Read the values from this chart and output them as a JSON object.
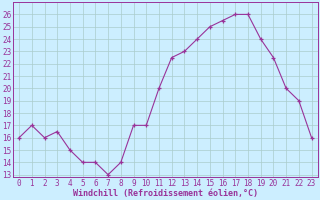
{
  "hours": [
    0,
    1,
    2,
    3,
    4,
    5,
    6,
    7,
    8,
    9,
    10,
    11,
    12,
    13,
    14,
    15,
    16,
    17,
    18,
    19,
    20,
    21,
    22,
    23
  ],
  "values": [
    16,
    17,
    16,
    16.5,
    15,
    14,
    14,
    13,
    14,
    17,
    17,
    20,
    22.5,
    23,
    24,
    25,
    25.5,
    26,
    26,
    24,
    22.5,
    20,
    19,
    16
  ],
  "line_color": "#993399",
  "marker_color": "#993399",
  "bg_color": "#cceeff",
  "grid_color": "#aacccc",
  "xlabel": "Windchill (Refroidissement éolien,°C)",
  "xlabel_color": "#993399",
  "ylim_min": 12.8,
  "ylim_max": 27.0,
  "yticks": [
    13,
    14,
    15,
    16,
    17,
    18,
    19,
    20,
    21,
    22,
    23,
    24,
    25,
    26
  ],
  "xticks": [
    0,
    1,
    2,
    3,
    4,
    5,
    6,
    7,
    8,
    9,
    10,
    11,
    12,
    13,
    14,
    15,
    16,
    17,
    18,
    19,
    20,
    21,
    22,
    23
  ],
  "tick_fontsize": 5.5,
  "label_fontsize": 6.0
}
